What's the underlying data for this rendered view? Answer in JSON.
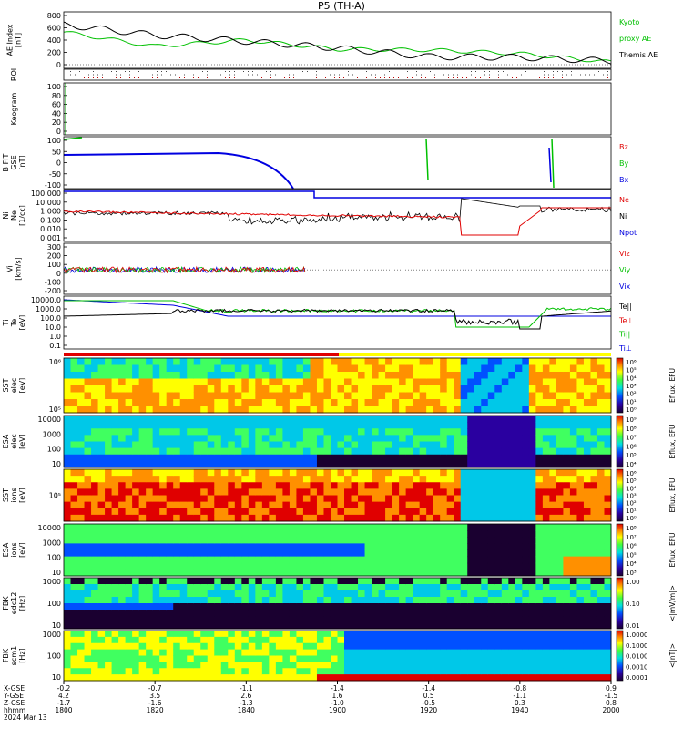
{
  "title": "P5 (TH-A)",
  "date_label": "2024 Mar 13",
  "footer": {
    "row_labels": [
      "X-GSE",
      "Y-GSE",
      "Z-GSE",
      "hhmm"
    ],
    "columns": [
      {
        "x": "-0.2",
        "y": "4.2",
        "z": "-1.7",
        "t": "1800"
      },
      {
        "x": "-0.7",
        "y": "3.5",
        "z": "-1.6",
        "t": "1820"
      },
      {
        "x": "-1.1",
        "y": "2.6",
        "z": "-1.3",
        "t": "1840"
      },
      {
        "x": "-1.4",
        "y": "1.6",
        "z": "-1.0",
        "t": "1900"
      },
      {
        "x": "-1.4",
        "y": "0.5",
        "z": "-0.5",
        "t": "1920"
      },
      {
        "x": "-0.8",
        "y": "-1.1",
        "z": "0.3",
        "t": "1940"
      },
      {
        "x": "0.9",
        "y": "-1.5",
        "z": "0.8",
        "t": "2000"
      }
    ]
  },
  "panels": [
    {
      "id": "ae",
      "ylabel": [
        "AE Index",
        "[nT]"
      ],
      "ticks": [
        "800",
        "600",
        "400",
        "200",
        "0"
      ],
      "legend": [
        {
          "text": "Kyoto",
          "color": "#00c000"
        },
        {
          "text": "proxy AE",
          "color": "#00c000"
        },
        {
          "text": "Themis AE",
          "color": "#000000"
        }
      ]
    },
    {
      "id": "roi",
      "ylabel": [
        "ROI"
      ],
      "ticks": [],
      "legend": []
    },
    {
      "id": "keogram",
      "ylabel": [
        "Keogram"
      ],
      "ticks": [
        "100",
        "80",
        "60",
        "40",
        "20",
        "0"
      ],
      "legend": []
    },
    {
      "id": "bfield",
      "ylabel": [
        "B FIT",
        "GSE",
        "[nT]"
      ],
      "ticks": [
        "100",
        "50",
        "0",
        "-50",
        "-100"
      ],
      "legend": [
        {
          "text": "Bz",
          "color": "#e00000"
        },
        {
          "text": "By",
          "color": "#00c000"
        },
        {
          "text": "Bx",
          "color": "#0000e0"
        }
      ]
    },
    {
      "id": "density",
      "ylabel": [
        "Ni",
        "Ne",
        "[1/cc]"
      ],
      "ticks": [
        "100.000",
        "10.000",
        "1.000",
        "0.100",
        "0.010",
        "0.001"
      ],
      "legend": [
        {
          "text": "Ne",
          "color": "#e00000"
        },
        {
          "text": "Ni",
          "color": "#000000"
        },
        {
          "text": "Npot",
          "color": "#0000e0"
        }
      ]
    },
    {
      "id": "velocity",
      "ylabel": [
        "Vi",
        "[km/s]"
      ],
      "ticks": [
        "300",
        "200",
        "100",
        "0",
        "-100",
        "-200"
      ],
      "legend": [
        {
          "text": "Viz",
          "color": "#e00000"
        },
        {
          "text": "Viy",
          "color": "#00c000"
        },
        {
          "text": "Vix",
          "color": "#0000e0"
        }
      ]
    },
    {
      "id": "temp",
      "ylabel": [
        "Ti",
        "Te",
        "[eV]"
      ],
      "ticks": [
        "10000.0",
        "1000.0",
        "100.0",
        "10.0",
        "1.0",
        "0.1"
      ],
      "legend": [
        {
          "text": "Te||",
          "color": "#000000"
        },
        {
          "text": "Te⊥",
          "color": "#e00000"
        },
        {
          "text": "Ti||",
          "color": "#00c000"
        },
        {
          "text": "Ti⊥",
          "color": "#0000e0"
        }
      ]
    },
    {
      "id": "sst_e",
      "ylabel": [
        "SST",
        "elec",
        "[eV]"
      ],
      "ticks": [
        "10⁶",
        "10⁵"
      ],
      "cbar": [
        "10⁶",
        "10⁵",
        "10⁴",
        "10³",
        "10²",
        "10¹",
        "10⁰"
      ],
      "cbar_title": "Eflux, EFU"
    },
    {
      "id": "esa_e",
      "ylabel": [
        "ESA",
        "elec",
        "[eV]"
      ],
      "ticks": [
        "10000",
        "1000",
        "100",
        "10"
      ],
      "cbar": [
        "10⁹",
        "10⁸",
        "10⁷",
        "10⁶",
        "10⁵",
        "10⁴"
      ],
      "cbar_title": "Eflux, EFU"
    },
    {
      "id": "sst_i",
      "ylabel": [
        "SST",
        "ions",
        "[eV]"
      ],
      "ticks": [
        "10⁵"
      ],
      "cbar": [
        "10⁶",
        "10⁵",
        "10⁴",
        "10³",
        "10²",
        "10¹",
        "10⁰"
      ],
      "cbar_title": "Eflux, EFU"
    },
    {
      "id": "esa_i",
      "ylabel": [
        "ESA",
        "ions",
        "[eV]"
      ],
      "ticks": [
        "10000",
        "1000",
        "100",
        "10"
      ],
      "cbar": [
        "10⁸",
        "10⁷",
        "10⁶",
        "10⁵",
        "10⁴",
        "10³"
      ],
      "cbar_title": "Eflux, EFU"
    },
    {
      "id": "fbk_e",
      "ylabel": [
        "FBK",
        "edc12",
        "[Hz]"
      ],
      "ticks": [
        "1000",
        "100",
        "10"
      ],
      "cbar": [
        "1.00",
        "0.10",
        "0.01"
      ],
      "cbar_title": "<|mV/m|>"
    },
    {
      "id": "fbk_b",
      "ylabel": [
        "FBK",
        "scm1",
        "[Hz]"
      ],
      "ticks": [
        "1000",
        "100",
        "10"
      ],
      "cbar": [
        "1.0000",
        "0.1000",
        "0.0100",
        "0.0010",
        "0.0001"
      ],
      "cbar_title": "<|nT|>"
    }
  ],
  "chart_data": {
    "type": "line",
    "title": "P5 (TH-A)",
    "x": [
      "1800",
      "1820",
      "1840",
      "1900",
      "1920",
      "1940",
      "2000"
    ],
    "series": [
      {
        "name": "Kyoto proxy AE",
        "panel": "ae",
        "values": [
          530,
          300,
          400,
          250,
          240,
          180,
          40
        ]
      },
      {
        "name": "Themis AE",
        "panel": "ae",
        "values": [
          650,
          480,
          380,
          270,
          130,
          120,
          60
        ]
      }
    ],
    "ylim": [
      0,
      800
    ]
  }
}
